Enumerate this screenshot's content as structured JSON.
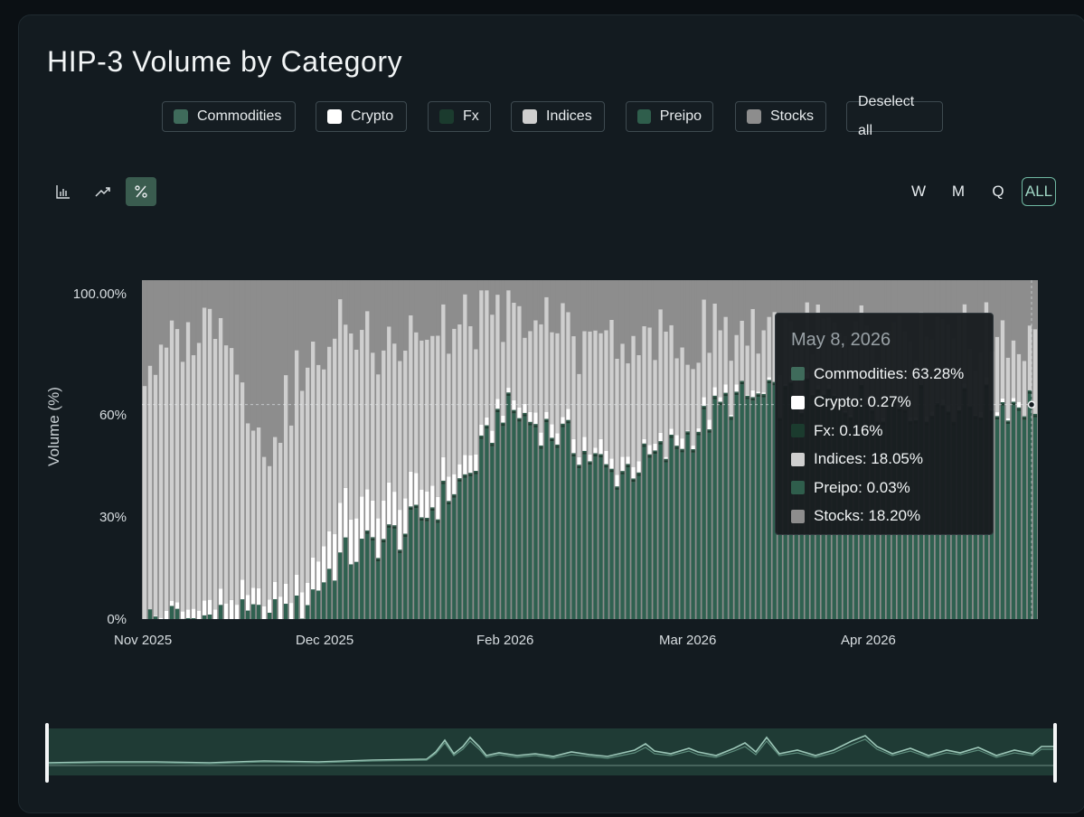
{
  "title": "HIP-3 Volume by Category",
  "legend": [
    {
      "label": "Commodities",
      "color": "#3f6b5b"
    },
    {
      "label": "Crypto",
      "color": "#ffffff"
    },
    {
      "label": "Fx",
      "color": "#1b3b2e"
    },
    {
      "label": "Indices",
      "color": "#cfcfcf"
    },
    {
      "label": "Preipo",
      "color": "#2f5e4c"
    },
    {
      "label": "Stocks",
      "color": "#8d8d8d"
    }
  ],
  "deselect_label": "Deselect all",
  "toolbar": {
    "icons": [
      "bar-chart-icon",
      "trend-line-icon",
      "percent-icon"
    ],
    "active_icon": "percent-icon",
    "periods": [
      "W",
      "M",
      "Q",
      "ALL"
    ],
    "active_period": "ALL"
  },
  "tooltip": {
    "date": "May 8, 2026",
    "rows": [
      {
        "label": "Commodities: 63.28%",
        "color": "#3f6b5b"
      },
      {
        "label": "Crypto: 0.27%",
        "color": "#ffffff"
      },
      {
        "label": "Fx: 0.16%",
        "color": "#1b3b2e"
      },
      {
        "label": "Indices: 18.05%",
        "color": "#cfcfcf"
      },
      {
        "label": "Preipo: 0.03%",
        "color": "#2f5e4c"
      },
      {
        "label": "Stocks: 18.20%",
        "color": "#8d8d8d"
      }
    ]
  },
  "chart_data": {
    "type": "bar",
    "stacked": true,
    "percent": true,
    "title": "HIP-3 Volume by Category",
    "ylabel": "Volume (%)",
    "xlabel": "",
    "ylim": [
      0,
      100
    ],
    "y_ticks": [
      "100.00%",
      "60%",
      "30%",
      "0%"
    ],
    "y_tick_values": [
      100,
      60,
      30,
      0
    ],
    "x_ticks": [
      "Nov 2025",
      "Dec 2025",
      "Feb 2026",
      "Mar 2026",
      "Apr 2026"
    ],
    "bar_count": 165,
    "x_tick_bar_index": [
      0,
      33,
      66,
      99,
      132
    ],
    "stack_order": [
      "Commodities",
      "Fx",
      "Preipo",
      "Crypto",
      "Indices",
      "Stocks"
    ],
    "colors": {
      "Commodities": "#2f6150",
      "Fx": "#1b3b2e",
      "Preipo": "#2f5e4c",
      "Crypto": "#ffffff",
      "Indices": "#cfcfcf",
      "Stocks": "#8d8d8d"
    },
    "key_points": [
      {
        "bar": 0,
        "commodities": 0,
        "crypto": 0,
        "indices": 72,
        "stocks": 28
      },
      {
        "bar": 14,
        "commodities": 0,
        "crypto": 4,
        "indices": 86,
        "stocks": 10
      },
      {
        "bar": 22,
        "commodities": 0,
        "crypto": 5,
        "indices": 40,
        "stocks": 55
      },
      {
        "bar": 28,
        "commodities": 2,
        "crypto": 6,
        "indices": 62,
        "stocks": 30
      },
      {
        "bar": 36,
        "commodities": 18,
        "crypto": 14,
        "indices": 54,
        "stocks": 14
      },
      {
        "bar": 48,
        "commodities": 25,
        "crypto": 10,
        "indices": 45,
        "stocks": 20
      },
      {
        "bar": 60,
        "commodities": 42,
        "crypto": 4,
        "indices": 40,
        "stocks": 14
      },
      {
        "bar": 66,
        "commodities": 62,
        "crypto": 2,
        "indices": 24,
        "stocks": 12
      },
      {
        "bar": 78,
        "commodities": 52,
        "crypto": 3,
        "indices": 30,
        "stocks": 15
      },
      {
        "bar": 86,
        "commodities": 42,
        "crypto": 3,
        "indices": 35,
        "stocks": 20
      },
      {
        "bar": 96,
        "commodities": 48,
        "crypto": 2,
        "indices": 30,
        "stocks": 20
      },
      {
        "bar": 108,
        "commodities": 64,
        "crypto": 1,
        "indices": 18,
        "stocks": 17
      },
      {
        "bar": 124,
        "commodities": 64,
        "crypto": 1,
        "indices": 18,
        "stocks": 17
      },
      {
        "bar": 150,
        "commodities": 62,
        "crypto": 1,
        "indices": 20,
        "stocks": 17
      },
      {
        "bar": 164,
        "commodities": 63.28,
        "crypto": 0.27,
        "indices": 18.05,
        "stocks": 18.2
      }
    ],
    "tooltip_bar": 164
  }
}
